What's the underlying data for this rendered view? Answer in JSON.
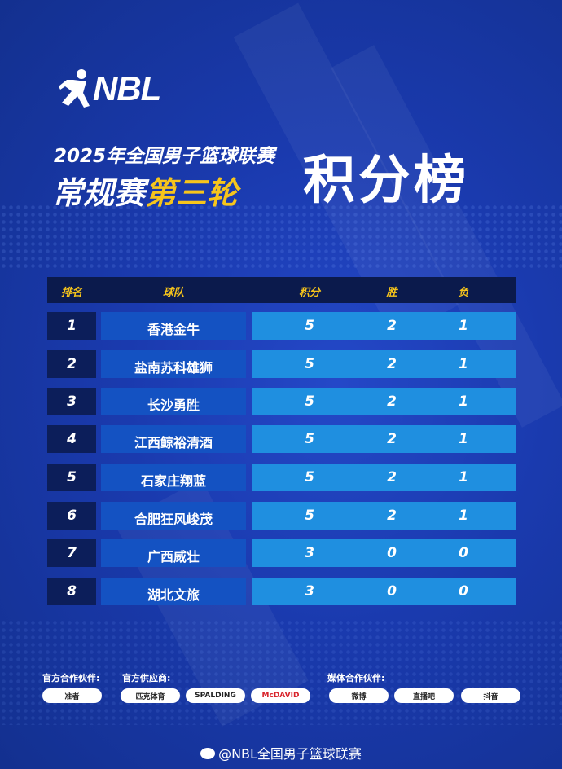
{
  "logo": {
    "text": "NBL"
  },
  "title": {
    "line1": "2025年全国男子篮球联赛",
    "line2_prefix": "常规赛",
    "line2_highlight": "第三轮",
    "main": "积分榜"
  },
  "colors": {
    "background": "#1a3aae",
    "header": "#0b1a4c",
    "rank_cell": "#0c1e5a",
    "team_cell": "#1452c2",
    "stats_cell": "#1f8fe0",
    "accent_yellow": "#f7c51b"
  },
  "table": {
    "headers": [
      "排名",
      "球队",
      "积分",
      "胜",
      "负"
    ],
    "rows": [
      {
        "rank": "1",
        "team": "香港金牛",
        "points": "5",
        "wins": "2",
        "losses": "1"
      },
      {
        "rank": "2",
        "team": "盐南苏科雄狮",
        "points": "5",
        "wins": "2",
        "losses": "1"
      },
      {
        "rank": "3",
        "team": "长沙勇胜",
        "points": "5",
        "wins": "2",
        "losses": "1"
      },
      {
        "rank": "4",
        "team": "江西鲸裕清酒",
        "points": "5",
        "wins": "2",
        "losses": "1"
      },
      {
        "rank": "5",
        "team": "石家庄翔蓝",
        "points": "5",
        "wins": "2",
        "losses": "1"
      },
      {
        "rank": "6",
        "team": "合肥狂风峻茂",
        "points": "5",
        "wins": "2",
        "losses": "1"
      },
      {
        "rank": "7",
        "team": "广西威壮",
        "points": "3",
        "wins": "0",
        "losses": "0"
      },
      {
        "rank": "8",
        "team": "湖北文旅",
        "points": "3",
        "wins": "0",
        "losses": "0"
      }
    ]
  },
  "partners": {
    "official_partner_label": "官方合作伙伴:",
    "official_supplier_label": "官方供应商:",
    "media_partner_label": "媒体合作伙伴:",
    "logos": [
      "准者",
      "匹克体育",
      "SPALDING",
      "McDAVID",
      "微博",
      "直播吧",
      "抖音"
    ]
  },
  "footer": {
    "text": "@NBL全国男子篮球联赛"
  }
}
